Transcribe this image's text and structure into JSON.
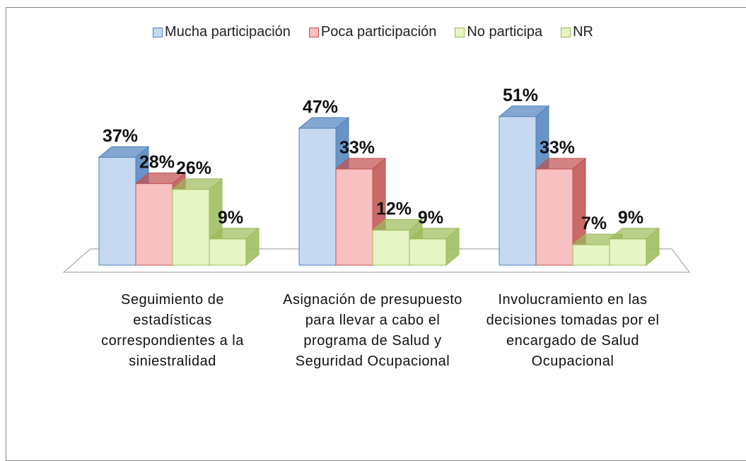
{
  "chart_data": {
    "type": "bar3d",
    "categories": [
      "Seguimiento de estadísticas correspondientes a la siniestralidad",
      "Asignación de presupuesto para llevar a cabo el programa de Salud y Seguridad Ocupacional",
      "Involucramiento en las decisiones tomadas por el encargado de Salud Ocupacional"
    ],
    "series": [
      {
        "name": "Mucha participación",
        "color": "#c6d9f1",
        "edge": "#4f81bd",
        "values": [
          37,
          47,
          51
        ],
        "value_labels": [
          "37%",
          "47%",
          "51%"
        ]
      },
      {
        "name": "Poca participación",
        "color": "#f8c0c0",
        "edge": "#c0504d",
        "values": [
          28,
          33,
          33
        ],
        "value_labels": [
          "28%",
          "33%",
          "33%"
        ]
      },
      {
        "name": "No participa",
        "color": "#e6f5c3",
        "edge": "#9bbb59",
        "values": [
          26,
          12,
          7
        ],
        "value_labels": [
          "26%",
          "12%",
          "7%"
        ]
      },
      {
        "name": "NR",
        "color": "#e6f5c3",
        "edge": "#9bbb59",
        "values": [
          9,
          9,
          9
        ],
        "value_labels": [
          "9%",
          "9%",
          "9%"
        ]
      }
    ],
    "legend": "top"
  }
}
